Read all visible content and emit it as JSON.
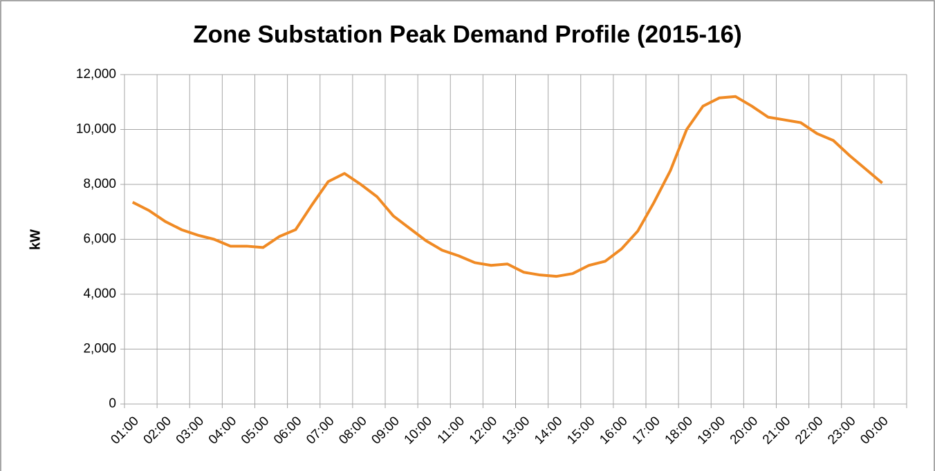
{
  "chart_data": {
    "type": "line",
    "title": "Zone Substation Peak Demand Profile (2015-16)",
    "y_label": "kW",
    "categories": [
      "01:00",
      null,
      "02:00",
      null,
      "03:00",
      null,
      "04:00",
      null,
      "05:00",
      null,
      "06:00",
      null,
      "07:00",
      null,
      "08:00",
      null,
      "09:00",
      null,
      "10:00",
      null,
      "11:00",
      null,
      "12:00",
      null,
      "13:00",
      null,
      "14:00",
      null,
      "15:00",
      null,
      "16:00",
      null,
      "17:00",
      null,
      "18:00",
      null,
      "19:00",
      null,
      "20:00",
      null,
      "21:00",
      null,
      "22:00",
      null,
      "23:00",
      null,
      "00:00",
      null
    ],
    "series": [
      {
        "name": "kW",
        "color": "#f08a24",
        "values": [
          7350,
          7050,
          6650,
          6350,
          6150,
          6000,
          5750,
          5750,
          5700,
          6100,
          6350,
          7250,
          8100,
          8400,
          8000,
          7550,
          6850,
          6400,
          5950,
          5600,
          5400,
          5150,
          5050,
          5100,
          4800,
          4700,
          4650,
          4750,
          5050,
          5200,
          5650,
          6300,
          7350,
          8500,
          10000,
          10850,
          11150,
          11200,
          10850,
          10450,
          10350,
          10250,
          9850,
          9600,
          9050,
          8550,
          8050,
          null
        ]
      }
    ],
    "ylim": [
      0,
      12000
    ],
    "yticks": [
      {
        "value": 0,
        "label": "0"
      },
      {
        "value": 2000,
        "label": "2,000"
      },
      {
        "value": 4000,
        "label": "4,000"
      },
      {
        "value": 6000,
        "label": "6,000"
      },
      {
        "value": 8000,
        "label": "8,000"
      },
      {
        "value": 10000,
        "label": "10,000"
      },
      {
        "value": 12000,
        "label": "12,000"
      }
    ],
    "grid": true
  }
}
